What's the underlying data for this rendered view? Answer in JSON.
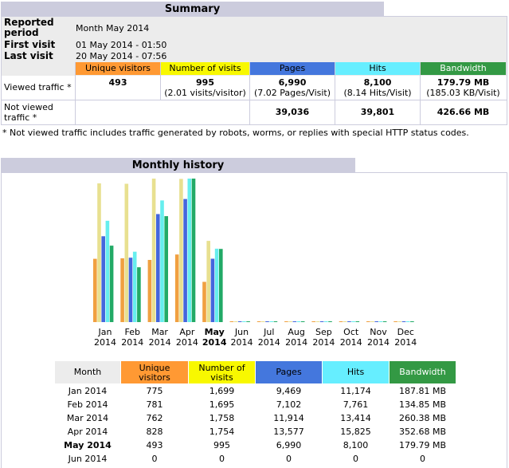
{
  "summary": {
    "title": "Summary",
    "reported_period_label": "Reported period",
    "reported_period_value": "Month May 2014",
    "first_visit_label": "First visit",
    "first_visit_value": "01 May 2014 - 01:50",
    "last_visit_label": "Last visit",
    "last_visit_value": "20 May 2014 - 07:56",
    "headers": {
      "unique_visitors": "Unique visitors",
      "number_of_visits": "Number of visits",
      "pages": "Pages",
      "hits": "Hits",
      "bandwidth": "Bandwidth"
    },
    "viewed_label": "Viewed traffic *",
    "viewed": {
      "unique_visitors": "493",
      "visits": "995",
      "visits_sub": "(2.01 visits/visitor)",
      "pages": "6,990",
      "pages_sub": "(7.02 Pages/Visit)",
      "hits": "8,100",
      "hits_sub": "(8.14 Hits/Visit)",
      "bandwidth": "179.79 MB",
      "bandwidth_sub": "(185.03 KB/Visit)"
    },
    "not_viewed_label": "Not viewed traffic *",
    "not_viewed": {
      "pages": "39,036",
      "hits": "39,801",
      "bandwidth": "426.66 MB"
    },
    "footnote": "* Not viewed traffic includes traffic generated by robots, worms, or replies with special HTTP status codes."
  },
  "history": {
    "title": "Monthly history",
    "table_headers": {
      "month": "Month",
      "unique_visitors": "Unique visitors",
      "number_of_visits": "Number of visits",
      "pages": "Pages",
      "hits": "Hits",
      "bandwidth": "Bandwidth"
    },
    "rows": [
      {
        "month": "Jan 2014",
        "unique": "775",
        "visits": "1,699",
        "pages": "9,469",
        "hits": "11,174",
        "bandwidth": "187.81 MB",
        "bold": false
      },
      {
        "month": "Feb 2014",
        "unique": "781",
        "visits": "1,695",
        "pages": "7,102",
        "hits": "7,761",
        "bandwidth": "134.85 MB",
        "bold": false
      },
      {
        "month": "Mar 2014",
        "unique": "762",
        "visits": "1,758",
        "pages": "11,914",
        "hits": "13,414",
        "bandwidth": "260.38 MB",
        "bold": false
      },
      {
        "month": "Apr 2014",
        "unique": "828",
        "visits": "1,754",
        "pages": "13,577",
        "hits": "15,825",
        "bandwidth": "352.68 MB",
        "bold": false
      },
      {
        "month": "May 2014",
        "unique": "493",
        "visits": "995",
        "pages": "6,990",
        "hits": "8,100",
        "bandwidth": "179.79 MB",
        "bold": true
      },
      {
        "month": "Jun 2014",
        "unique": "0",
        "visits": "0",
        "pages": "0",
        "hits": "0",
        "bandwidth": "0",
        "bold": false
      }
    ]
  },
  "chart_data": {
    "type": "bar",
    "categories": [
      "Jan 2014",
      "Feb 2014",
      "Mar 2014",
      "Apr 2014",
      "May 2014",
      "Jun 2014",
      "Jul 2014",
      "Aug 2014",
      "Sep 2014",
      "Oct 2014",
      "Nov 2014",
      "Dec 2014"
    ],
    "month_labels": [
      "Jan",
      "Feb",
      "Mar",
      "Apr",
      "May",
      "Jun",
      "Jul",
      "Aug",
      "Sep",
      "Oct",
      "Nov",
      "Dec"
    ],
    "year_label": "2014",
    "current_index": 4,
    "series": [
      {
        "key": "unique",
        "color": "#f0a040",
        "values": [
          775,
          781,
          762,
          828,
          493,
          0,
          0,
          0,
          0,
          0,
          0,
          0
        ]
      },
      {
        "key": "visits",
        "color": "#e8e090",
        "values": [
          1699,
          1695,
          1758,
          1754,
          995,
          0,
          0,
          0,
          0,
          0,
          0,
          0
        ]
      },
      {
        "key": "pages",
        "color": "#4466dd",
        "values": [
          9469,
          7102,
          11914,
          13577,
          6990,
          0,
          0,
          0,
          0,
          0,
          0,
          0
        ]
      },
      {
        "key": "hits",
        "color": "#66eeee",
        "values": [
          11174,
          7761,
          13414,
          15825,
          8100,
          0,
          0,
          0,
          0,
          0,
          0,
          0
        ]
      },
      {
        "key": "bandwidth",
        "color": "#22aa66",
        "values": [
          187.81,
          134.85,
          260.38,
          352.68,
          179.79,
          0,
          0,
          0,
          0,
          0,
          0,
          0
        ]
      }
    ],
    "scale_groups": [
      [
        "unique",
        "visits"
      ],
      [
        "pages",
        "hits"
      ],
      [
        "bandwidth"
      ]
    ],
    "colors": {
      "unique_visitors": "#ff9933",
      "number_of_visits": "#f8f800",
      "pages": "#4477dd",
      "hits": "#66eeff",
      "bandwidth": "#339944"
    }
  }
}
